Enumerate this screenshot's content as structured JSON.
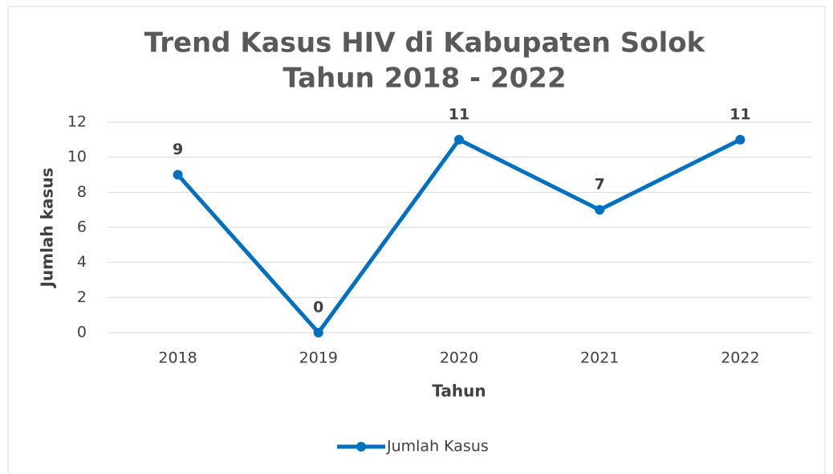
{
  "chart_data": {
    "type": "line",
    "title": [
      "Trend Kasus HIV di Kabupaten Solok",
      "Tahun 2018 - 2022"
    ],
    "x_label": "Tahun",
    "y_label": "Jumlah kasus",
    "categories": [
      "2018",
      "2019",
      "2020",
      "2021",
      "2022"
    ],
    "series": [
      {
        "name": "Jumlah Kasus",
        "color": "#0070c0",
        "values": [
          9,
          0,
          11,
          7,
          11
        ]
      }
    ],
    "ylim": [
      0,
      12
    ],
    "yticks": [
      0,
      2,
      4,
      6,
      8,
      10,
      12
    ],
    "grid": true,
    "legend": "bottom"
  }
}
